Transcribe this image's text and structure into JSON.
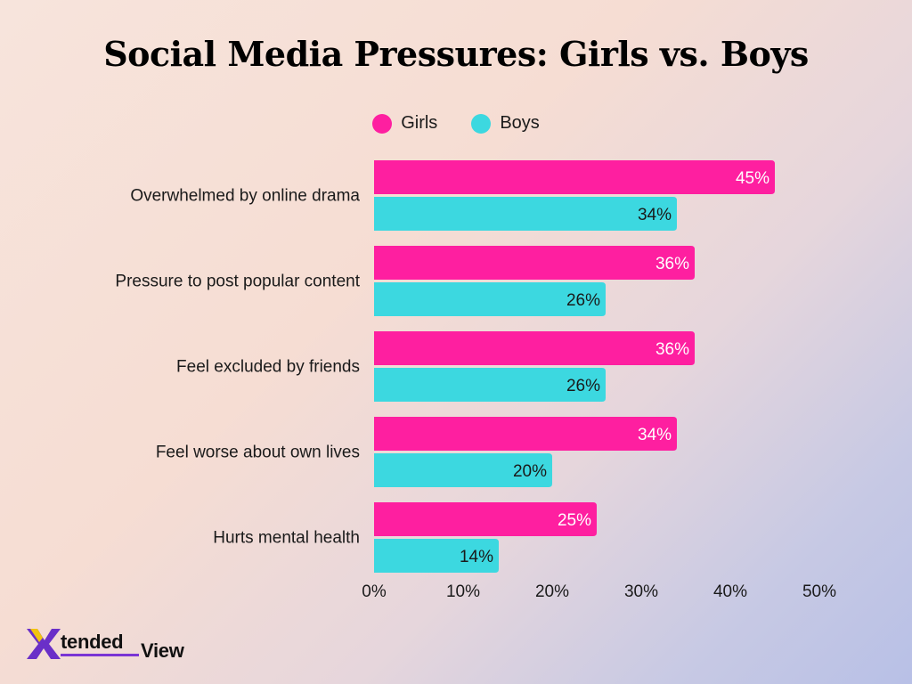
{
  "colors": {
    "girls": "#fe1fa0",
    "boys": "#3cd8e0",
    "text": "#1a1a1a"
  },
  "chart_data": {
    "type": "bar",
    "orientation": "horizontal",
    "title": "Social Media Pressures: Girls vs. Boys",
    "categories": [
      "Overwhelmed by online drama",
      "Pressure to post popular content",
      "Feel excluded by friends",
      "Feel worse about own lives",
      "Hurts mental health"
    ],
    "series": [
      {
        "name": "Girls",
        "values": [
          45,
          36,
          36,
          34,
          25
        ],
        "labels": [
          "45%",
          "36%",
          "36%",
          "34%",
          "25%"
        ]
      },
      {
        "name": "Boys",
        "values": [
          34,
          26,
          26,
          20,
          14
        ],
        "labels": [
          "34%",
          "26%",
          "26%",
          "20%",
          "14%"
        ]
      }
    ],
    "x_ticks": [
      "0%",
      "10%",
      "20%",
      "30%",
      "40%",
      "50%"
    ],
    "xlim": [
      0,
      50
    ],
    "legend": "top-center",
    "grid": false
  },
  "logo": {
    "mark": "X",
    "word1": "tended",
    "word2": "View"
  }
}
